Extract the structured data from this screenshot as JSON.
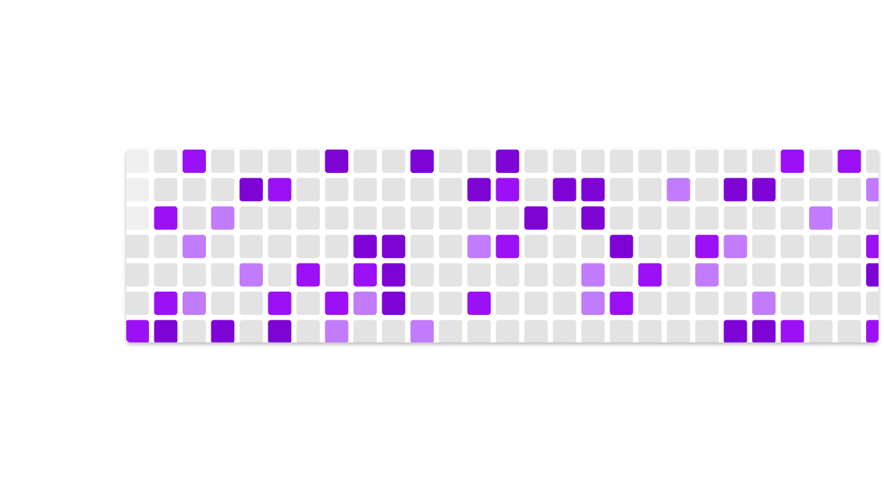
{
  "chart_data": {
    "type": "heatmap",
    "title": "",
    "xlabel": "",
    "ylabel": "",
    "legend": "none",
    "grid": false,
    "levels": [
      0,
      1,
      2,
      3
    ],
    "colors": {
      "0": "#e3e3e3",
      "1": "#c17cfb",
      "2": "#9c10f5",
      "3": "#7e04d6"
    },
    "fade_color": "#f0f0f0",
    "values": [
      [
        0,
        0,
        2,
        0,
        0,
        0,
        0,
        3,
        0,
        0,
        3,
        0,
        0,
        3,
        0,
        0,
        0,
        0,
        0,
        0,
        0,
        0,
        0,
        2,
        0,
        2,
        0
      ],
      [
        0,
        0,
        0,
        0,
        3,
        2,
        0,
        0,
        0,
        0,
        0,
        0,
        3,
        2,
        0,
        3,
        3,
        0,
        0,
        1,
        0,
        3,
        3,
        0,
        0,
        0,
        1
      ],
      [
        0,
        2,
        0,
        1,
        0,
        0,
        0,
        0,
        0,
        0,
        0,
        0,
        0,
        0,
        3,
        0,
        3,
        0,
        0,
        0,
        0,
        0,
        0,
        0,
        1,
        0,
        0
      ],
      [
        0,
        0,
        1,
        0,
        0,
        0,
        0,
        0,
        3,
        3,
        0,
        0,
        1,
        2,
        0,
        0,
        0,
        3,
        0,
        0,
        2,
        1,
        0,
        0,
        0,
        0,
        2
      ],
      [
        0,
        0,
        0,
        0,
        1,
        0,
        2,
        0,
        2,
        3,
        0,
        0,
        0,
        0,
        0,
        0,
        1,
        0,
        2,
        0,
        1,
        0,
        0,
        0,
        0,
        0,
        3
      ],
      [
        0,
        2,
        1,
        0,
        0,
        2,
        0,
        2,
        1,
        3,
        0,
        0,
        2,
        0,
        0,
        0,
        1,
        2,
        0,
        0,
        0,
        0,
        1,
        0,
        0,
        0,
        0
      ],
      [
        2,
        3,
        0,
        3,
        0,
        3,
        0,
        1,
        0,
        0,
        1,
        0,
        0,
        0,
        0,
        0,
        0,
        0,
        0,
        0,
        0,
        3,
        3,
        2,
        0,
        0,
        2
      ]
    ],
    "faded_cells": [
      [
        0,
        0
      ],
      [
        1,
        0
      ],
      [
        2,
        0
      ]
    ]
  }
}
